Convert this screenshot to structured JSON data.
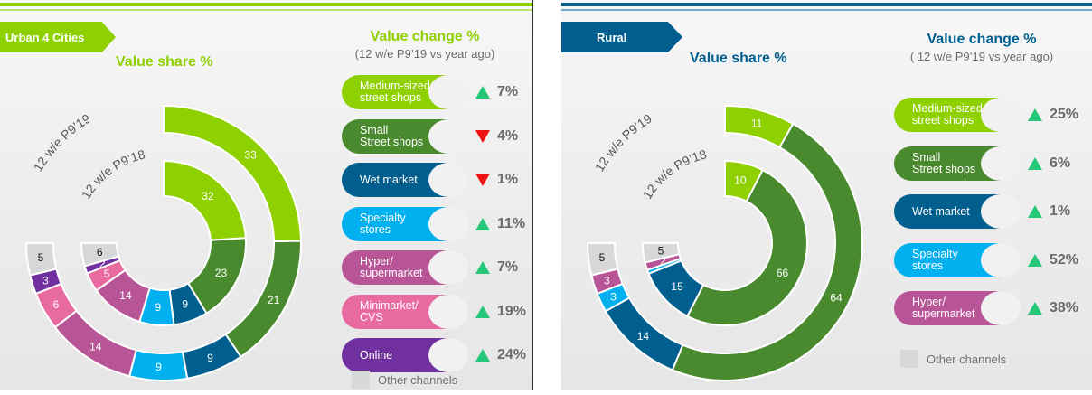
{
  "colors": {
    "medium": "#8fd000",
    "small": "#4a8a2e",
    "wet": "#005f8f",
    "specialty": "#00b0ef",
    "hyper": "#b85597",
    "mini": "#e96aa0",
    "online": "#7030a0",
    "other": "#d8d8d8",
    "green_accent": "#8fd000",
    "blue_accent": "#005f8f",
    "up": "#25c878",
    "down": "#ee1111"
  },
  "left": {
    "tag": "Urban 4 Cities",
    "value_share_title": "Value share %",
    "value_change_title": "Value change %",
    "value_change_sub": "(12 w/e P9’19 vs year ago)",
    "ring_label_outer": "12 w/e P9’19",
    "ring_label_inner": "12 w/e P9’18",
    "legend_other": "Other channels",
    "channels": [
      {
        "label": "Medium-sized\nstreet shops",
        "color_key": "medium",
        "change": "7%",
        "direction": "up"
      },
      {
        "label": "Small\nStreet shops",
        "color_key": "small",
        "change": "4%",
        "direction": "down"
      },
      {
        "label": "Wet market",
        "color_key": "wet",
        "change": "1%",
        "direction": "down"
      },
      {
        "label": "Specialty\nstores",
        "color_key": "specialty",
        "change": "11%",
        "direction": "up"
      },
      {
        "label": "Hyper/\nsupermarket",
        "color_key": "hyper",
        "change": "7%",
        "direction": "up"
      },
      {
        "label": "Minimarket/\nCVS",
        "color_key": "mini",
        "change": "19%",
        "direction": "up"
      },
      {
        "label": "Online",
        "color_key": "online",
        "change": "24%",
        "direction": "up"
      }
    ]
  },
  "right": {
    "tag": "Rural",
    "value_share_title": "Value share %",
    "value_change_title": "Value change %",
    "value_change_sub": "( 12 w/e P9’19 vs year ago)",
    "ring_label_outer": "12 w/e P9’19",
    "ring_label_inner": "12 w/e P9’18",
    "legend_other": "Other channels",
    "channels": [
      {
        "label": "Medium-sized\nstreet shops",
        "color_key": "medium",
        "change": "25%",
        "direction": "up"
      },
      {
        "label": "Small\nStreet shops",
        "color_key": "small",
        "change": "6%",
        "direction": "up"
      },
      {
        "label": "Wet market",
        "color_key": "wet",
        "change": "1%",
        "direction": "up"
      },
      {
        "label": "Specialty\nstores",
        "color_key": "specialty",
        "change": "52%",
        "direction": "up"
      },
      {
        "label": "Hyper/\nsupermarket",
        "color_key": "hyper",
        "change": "38%",
        "direction": "up"
      }
    ]
  },
  "chart_data": [
    {
      "type": "pie",
      "title": "Urban 4 Cities — Value share %",
      "subtype": "three-quarter nested donut",
      "categories": [
        "Medium-sized street shops",
        "Small Street shops",
        "Wet market",
        "Specialty stores",
        "Hyper/supermarket",
        "Minimarket/CVS",
        "Online",
        "Other channels"
      ],
      "color_keys": [
        "medium",
        "small",
        "wet",
        "specialty",
        "hyper",
        "mini",
        "online",
        "other"
      ],
      "series": [
        {
          "name": "12 w/e P9’19",
          "ring": "outer",
          "values": [
            33,
            21,
            9,
            9,
            14,
            6,
            3,
            5
          ],
          "labels": [
            "33",
            "21",
            "9",
            "9",
            "14",
            "6",
            "3",
            "5"
          ]
        },
        {
          "name": "12 w/e P9’18",
          "ring": "inner",
          "values": [
            32,
            23,
            9,
            9,
            14,
            5,
            2,
            6
          ],
          "labels": [
            "32",
            "23",
            "9",
            "9",
            "14",
            "5",
            "2",
            "6"
          ]
        }
      ]
    },
    {
      "type": "pie",
      "title": "Rural — Value share %",
      "subtype": "three-quarter nested donut",
      "categories": [
        "Medium-sized street shops",
        "Small Street shops",
        "Wet market",
        "Specialty stores",
        "Hyper/supermarket",
        "Other channels"
      ],
      "color_keys": [
        "medium",
        "small",
        "wet",
        "specialty",
        "hyper",
        "other"
      ],
      "series": [
        {
          "name": "12 w/e P9’19",
          "ring": "outer",
          "values": [
            11,
            64,
            14,
            3,
            3,
            5
          ],
          "labels": [
            "11",
            "64",
            "14",
            "3",
            "3",
            "5"
          ]
        },
        {
          "name": "12 w/e P9’18",
          "ring": "inner",
          "values": [
            10,
            66,
            15,
            1,
            2,
            5
          ],
          "labels": [
            "10",
            "66",
            "15",
            "",
            "2",
            "5"
          ]
        }
      ]
    }
  ]
}
